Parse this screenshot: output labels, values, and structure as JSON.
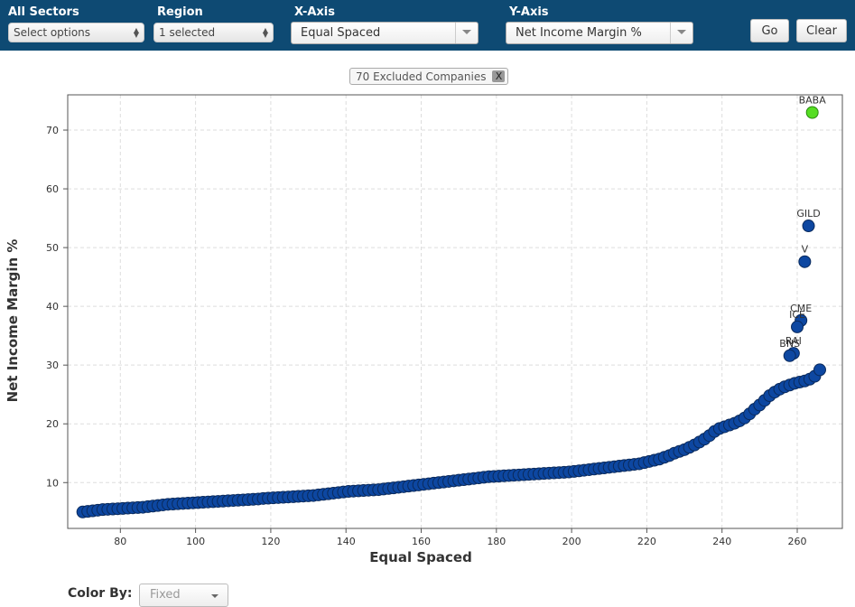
{
  "filters": {
    "sectors": {
      "label": "All Sectors",
      "value": "Select options"
    },
    "region": {
      "label": "Region",
      "value": "1 selected"
    },
    "x_axis": {
      "label": "X-Axis",
      "value": "Equal Spaced"
    },
    "y_axis": {
      "label": "Y-Axis",
      "value": "Net Income Margin %"
    },
    "go_label": "Go",
    "clear_label": "Clear"
  },
  "excluded": {
    "text": "70 Excluded Companies",
    "remove": "X"
  },
  "color_by": {
    "label": "Color By:",
    "value": "Fixed"
  },
  "colors": {
    "header_bg": "#0e4a73",
    "point": "#0d47a1",
    "point_stroke": "#0a2a5c",
    "highlight": "#55dd22"
  },
  "chart_data": {
    "type": "scatter",
    "xlabel": "Equal Spaced",
    "ylabel": "Net Income Margin %",
    "xlim": [
      66,
      272
    ],
    "ylim": [
      2.2,
      76
    ],
    "x_ticks": [
      80,
      100,
      120,
      140,
      160,
      180,
      200,
      220,
      240,
      260
    ],
    "y_ticks": [
      10,
      20,
      30,
      40,
      50,
      60,
      70
    ],
    "grid": true,
    "labeled_points": [
      {
        "label": "BABA",
        "x": 264,
        "y": 73,
        "highlight": true
      },
      {
        "label": "GILD",
        "x": 263,
        "y": 53.7
      },
      {
        "label": "V",
        "x": 262,
        "y": 47.6
      },
      {
        "label": "CME",
        "x": 261,
        "y": 37.6
      },
      {
        "label": "ICE",
        "x": 260,
        "y": 36.5
      },
      {
        "label": "RAI",
        "x": 259,
        "y": 32
      },
      {
        "label": "BNS",
        "x": 258,
        "y": 31.6
      }
    ],
    "series_y": [
      5,
      5.1,
      5.2,
      5.3,
      5.4,
      5.45,
      5.5,
      5.55,
      5.6,
      5.65,
      5.7,
      5.75,
      5.8,
      5.9,
      6,
      6.1,
      6.2,
      6.3,
      6.35,
      6.4,
      6.45,
      6.5,
      6.55,
      6.6,
      6.65,
      6.7,
      6.75,
      6.8,
      6.85,
      6.9,
      6.95,
      7,
      7.05,
      7.1,
      7.15,
      7.2,
      7.3,
      7.35,
      7.4,
      7.45,
      7.5,
      7.55,
      7.6,
      7.65,
      7.7,
      7.75,
      7.8,
      7.9,
      8,
      8.1,
      8.2,
      8.3,
      8.4,
      8.5,
      8.55,
      8.6,
      8.65,
      8.7,
      8.75,
      8.8,
      8.9,
      9,
      9.1,
      9.2,
      9.3,
      9.4,
      9.5,
      9.6,
      9.7,
      9.8,
      9.9,
      10,
      10.1,
      10.2,
      10.3,
      10.4,
      10.5,
      10.6,
      10.7,
      10.8,
      10.9,
      11,
      11.05,
      11.1,
      11.15,
      11.2,
      11.25,
      11.3,
      11.35,
      11.4,
      11.45,
      11.5,
      11.55,
      11.6,
      11.65,
      11.7,
      11.75,
      11.8,
      11.9,
      12,
      12.1,
      12.2,
      12.3,
      12.4,
      12.5,
      12.6,
      12.7,
      12.8,
      12.9,
      13,
      13.1,
      13.2,
      13.4,
      13.6,
      13.8,
      14,
      14.3,
      14.6,
      15,
      15.3,
      15.6,
      16,
      16.4,
      16.9,
      17.4,
      18,
      18.7,
      19.2,
      19.5,
      19.8,
      20.1,
      20.5,
      21,
      21.7,
      22.5,
      23.2,
      24,
      24.8,
      25.4,
      25.9,
      26.3,
      26.6,
      26.9,
      27.1,
      27.3,
      27.6,
      28.1,
      29.2,
      31.6,
      32,
      36.5,
      37.6,
      47.6,
      53.7,
      73
    ],
    "series_x_start": 70,
    "series_x_step": 1.3333
  }
}
